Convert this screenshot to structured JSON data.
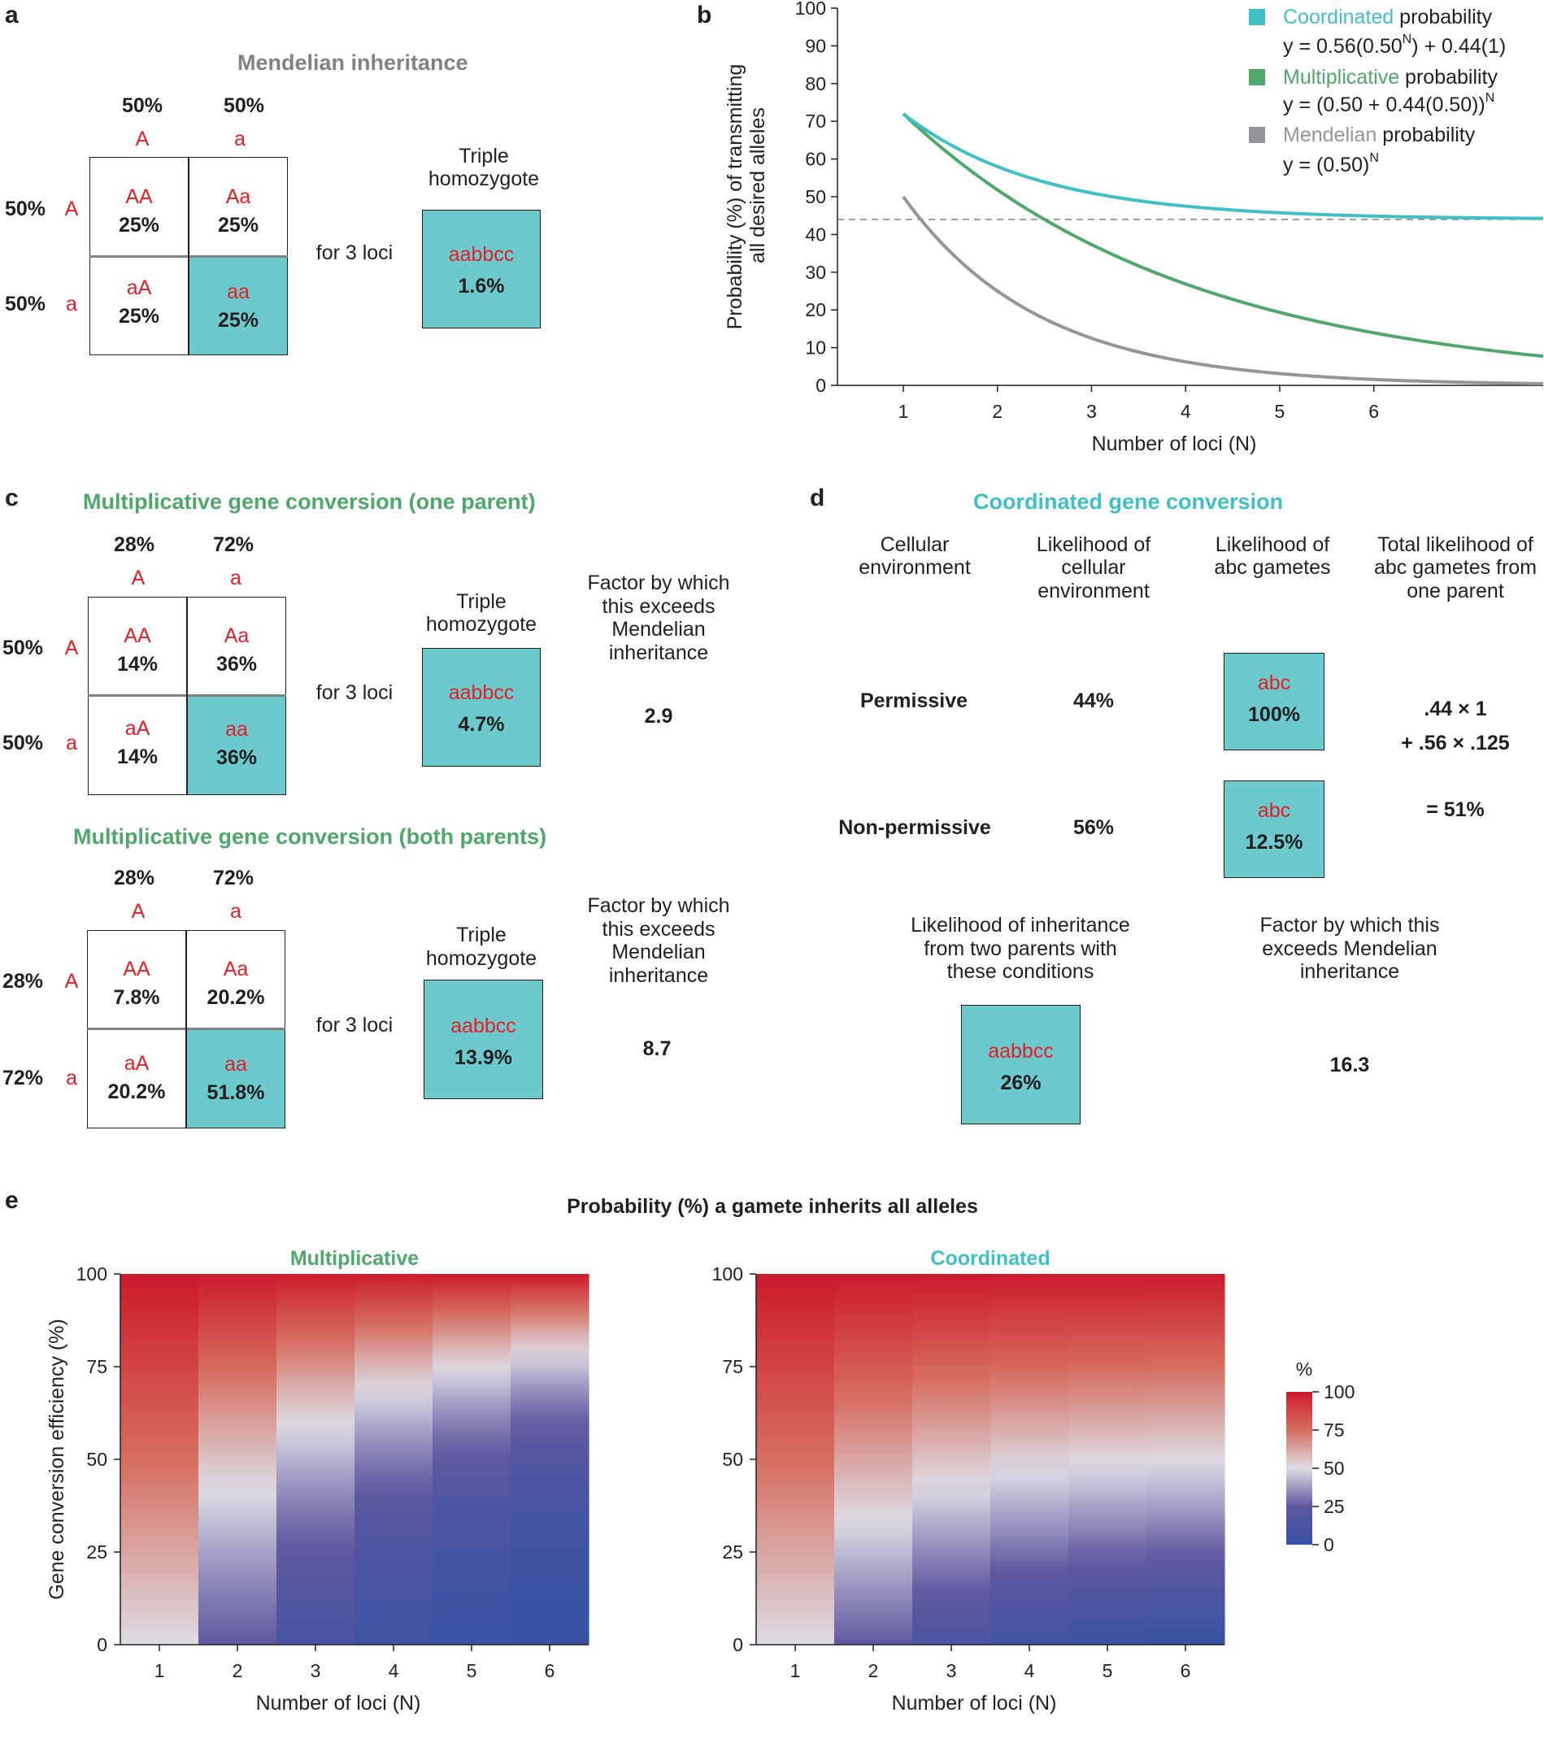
{
  "panel_labels": {
    "a": "a",
    "b": "b",
    "c": "c",
    "d": "d",
    "e": "e"
  },
  "panel_a": {
    "title": "Mendelian inheritance",
    "col_pcts": [
      "50%",
      "50%"
    ],
    "col_alleles": [
      "A",
      "a"
    ],
    "row_pcts": [
      "50%",
      "50%"
    ],
    "row_alleles": [
      "A",
      "a"
    ],
    "cells": [
      {
        "g": "AA",
        "v": "25%"
      },
      {
        "g": "Aa",
        "v": "25%"
      },
      {
        "g": "aA",
        "v": "25%"
      },
      {
        "g": "aa",
        "v": "25%"
      }
    ],
    "for_loci": "for 3 loci",
    "triple_l1": "Triple",
    "triple_l2": "homozygote",
    "box_g": "aabbcc",
    "box_v": "1.6%"
  },
  "panel_c1": {
    "title": "Multiplicative gene conversion (one parent)",
    "col_pcts": [
      "28%",
      "72%"
    ],
    "col_alleles": [
      "A",
      "a"
    ],
    "row_pcts": [
      "50%",
      "50%"
    ],
    "row_alleles": [
      "A",
      "a"
    ],
    "cells": [
      {
        "g": "AA",
        "v": "14%"
      },
      {
        "g": "Aa",
        "v": "36%"
      },
      {
        "g": "aA",
        "v": "14%"
      },
      {
        "g": "aa",
        "v": "36%"
      }
    ],
    "for_loci": "for 3 loci",
    "triple_l1": "Triple",
    "triple_l2": "homozygote",
    "box_g": "aabbcc",
    "box_v": "4.7%",
    "factor_l1": "Factor by which",
    "factor_l2": "this exceeds",
    "factor_l3": "Mendelian",
    "factor_l4": "inheritance",
    "factor": "2.9"
  },
  "panel_c2": {
    "title": "Multiplicative gene conversion (both parents)",
    "col_pcts": [
      "28%",
      "72%"
    ],
    "col_alleles": [
      "A",
      "a"
    ],
    "row_pcts": [
      "28%",
      "72%"
    ],
    "row_alleles": [
      "A",
      "a"
    ],
    "cells": [
      {
        "g": "AA",
        "v": "7.8%"
      },
      {
        "g": "Aa",
        "v": "20.2%"
      },
      {
        "g": "aA",
        "v": "20.2%"
      },
      {
        "g": "aa",
        "v": "51.8%"
      }
    ],
    "for_loci": "for 3 loci",
    "triple_l1": "Triple",
    "triple_l2": "homozygote",
    "box_g": "aabbcc",
    "box_v": "13.9%",
    "factor_l1": "Factor by which",
    "factor_l2": "this exceeds",
    "factor_l3": "Mendelian",
    "factor_l4": "inheritance",
    "factor": "8.7"
  },
  "panel_d": {
    "title": "Coordinated gene conversion",
    "h1_l1": "Cellular",
    "h1_l2": "environment",
    "h2_l1": "Likelihood of",
    "h2_l2": "cellular",
    "h2_l3": "environment",
    "h3_l1": "Likelihood of",
    "h3_l2": "abc gametes",
    "h4_l1": "Total likelihood of",
    "h4_l2": "abc gametes from",
    "h4_l3": "one parent",
    "row1_env": "Permissive",
    "row1_like": "44%",
    "row1_g": "abc",
    "row1_v": "100%",
    "row2_env": "Non-permissive",
    "row2_like": "56%",
    "row2_g": "abc",
    "row2_v": "12.5%",
    "calc1": ".44 × 1",
    "calc2": "+ .56 × .125",
    "calc3": "= 51%",
    "inh_l1": "Likelihood of inheritance",
    "inh_l2": "from two parents with",
    "inh_l3": "these conditions",
    "fac_l1": "Factor by which this",
    "fac_l2": "exceeds Mendelian",
    "fac_l3": "inheritance",
    "box_g": "aabbcc",
    "box_v": "26%",
    "factor": "16.3"
  },
  "chart_data": [
    {
      "type": "line",
      "panel": "b",
      "xlabel": "Number of loci (N)",
      "ylabel_l1": "Probability (%)  of transmitting",
      "ylabel_l2": "all desired alleles",
      "xlim": [
        0.3,
        7.8
      ],
      "ylim": [
        0,
        100
      ],
      "xticks": [
        1,
        2,
        3,
        4,
        5,
        6
      ],
      "yticks": [
        0,
        10,
        20,
        30,
        40,
        50,
        60,
        70,
        80,
        90,
        100
      ],
      "reference_line": 44,
      "series": [
        {
          "name": "Coordinated",
          "suffix": "probability",
          "color": "#3fc0c6",
          "formula_prefix": "y = 0.56(0.50",
          "formula_sup": "N",
          "formula_suffix": ")  + 0.44(1)",
          "x_range": [
            1,
            7.8
          ],
          "model": "coordinated"
        },
        {
          "name": "Multiplicative",
          "suffix": "probability",
          "color": "#4fa76b",
          "formula_prefix": "y = (0.50 + 0.44(0.50))",
          "formula_sup": "N",
          "formula_suffix": "",
          "x_range": [
            1,
            7.8
          ],
          "model": "multiplicative"
        },
        {
          "name": "Mendelian",
          "suffix": "probability",
          "color": "#939598",
          "formula_prefix": "y = (0.50)",
          "formula_sup": "N",
          "formula_suffix": "",
          "x_range": [
            1,
            7.8
          ],
          "model": "mendelian"
        }
      ]
    },
    {
      "type": "heatmap",
      "panel": "e",
      "title": "Probability (%) a gamete inherits all alleles",
      "subplots": [
        {
          "name": "Multiplicative",
          "title_color": "#4fa76b",
          "model": "multiplicative"
        },
        {
          "name": "Coordinated",
          "title_color": "#3fc0c6",
          "model": "coordinated"
        }
      ],
      "xlabel": "Number of loci (N)",
      "ylabel": "Gene conversion efficiency (%)",
      "xticks": [
        1,
        2,
        3,
        4,
        5,
        6
      ],
      "yticks": [
        0,
        25,
        50,
        75,
        100
      ],
      "colorbar": {
        "label": "%",
        "ticks": [
          0,
          25,
          50,
          75,
          100
        ],
        "tick_labels": [
          "0",
          "25",
          "50",
          "75",
          "100"
        ]
      }
    }
  ]
}
